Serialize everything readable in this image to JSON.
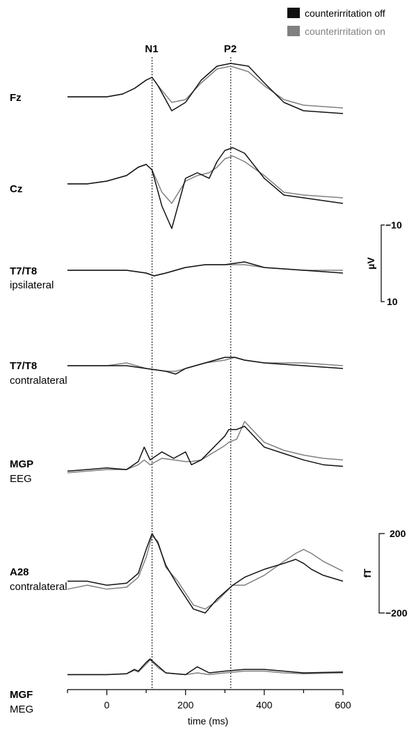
{
  "colors": {
    "off": "#111111",
    "on": "#808080",
    "axis": "#000000"
  },
  "legend": [
    {
      "label": "counterirritation off",
      "color": "#111111"
    },
    {
      "label": "counterirritation on",
      "color": "#808080"
    }
  ],
  "markers": [
    {
      "label": "N1",
      "time": 115
    },
    {
      "label": "P2",
      "time": 315
    }
  ],
  "channel_labels": [
    {
      "bold": "Fz",
      "sub": ""
    },
    {
      "bold": "Cz",
      "sub": ""
    },
    {
      "bold": "T7/T8",
      "sub": "ipsilateral"
    },
    {
      "bold": "T7/T8",
      "sub": "contralateral"
    },
    {
      "bold": "MGP",
      "sub": "EEG"
    },
    {
      "bold": "A28",
      "sub": "contralateral"
    },
    {
      "bold": "MGF",
      "sub": "MEG"
    }
  ],
  "scale_bars": [
    {
      "unit": "µV",
      "top": "−10",
      "bottom": "10"
    },
    {
      "unit": "fT",
      "top": "200",
      "bottom": "−200"
    }
  ],
  "chart_data": {
    "type": "line",
    "title": "",
    "xlabel": "time (ms)",
    "xlim": [
      -100,
      600
    ],
    "xticks": [
      0,
      200,
      400,
      600
    ],
    "series_names": [
      "counterirritation off",
      "counterirritation on"
    ],
    "panels": [
      {
        "name": "Fz",
        "unit": "µV",
        "x": [
          -100,
          -50,
          0,
          40,
          70,
          100,
          115,
          130,
          165,
          200,
          240,
          280,
          315,
          360,
          400,
          450,
          500,
          600
        ],
        "off": [
          0,
          0,
          0,
          -1,
          -3,
          -6,
          -7,
          -4,
          5,
          2,
          -6,
          -11,
          -12,
          -11,
          -5,
          2,
          5,
          6
        ],
        "on": [
          0,
          0,
          0,
          -1,
          -3,
          -6,
          -7,
          -4,
          2,
          1,
          -5,
          -10,
          -11,
          -9,
          -4,
          1,
          3,
          4
        ]
      },
      {
        "name": "Cz",
        "unit": "µV",
        "x": [
          -100,
          -50,
          0,
          50,
          80,
          100,
          115,
          140,
          165,
          200,
          230,
          260,
          280,
          300,
          320,
          350,
          400,
          450,
          500,
          600
        ],
        "off": [
          0,
          0,
          -1,
          -3,
          -6,
          -7,
          -5,
          8,
          16,
          -2,
          -4,
          -2,
          -8,
          -12,
          -13,
          -11,
          -2,
          4,
          5,
          7
        ],
        "on": [
          0,
          0,
          -1,
          -3,
          -6,
          -7,
          -5,
          3,
          7,
          -1,
          -3,
          -4,
          -6,
          -9,
          -10,
          -8,
          -3,
          3,
          4,
          5
        ]
      },
      {
        "name": "T7/T8 ipsilateral",
        "unit": "µV",
        "x": [
          -100,
          0,
          50,
          100,
          120,
          150,
          200,
          250,
          300,
          350,
          400,
          500,
          600
        ],
        "off": [
          0,
          0,
          0,
          1,
          2,
          1,
          -1,
          -2,
          -2,
          -3,
          -1,
          0,
          1
        ],
        "on": [
          0,
          0,
          0,
          1,
          2,
          1,
          -1,
          -2,
          -2,
          -2,
          -1,
          0,
          0
        ]
      },
      {
        "name": "T7/T8 contralateral",
        "unit": "µV",
        "x": [
          -100,
          0,
          50,
          100,
          150,
          175,
          200,
          250,
          300,
          325,
          350,
          400,
          500,
          600
        ],
        "off": [
          0,
          0,
          0,
          1,
          2,
          3,
          1,
          -1,
          -3,
          -3,
          -2,
          -1,
          0,
          1
        ],
        "on": [
          0,
          0,
          -1,
          1,
          2,
          2,
          1,
          -1,
          -2,
          -3,
          -2,
          -1,
          -1,
          0
        ]
      },
      {
        "name": "MGP EEG",
        "unit": "µV",
        "x": [
          -100,
          0,
          50,
          80,
          95,
          110,
          140,
          170,
          200,
          215,
          240,
          300,
          310,
          330,
          350,
          400,
          450,
          500,
          550,
          600
        ],
        "off": [
          2,
          4,
          3,
          8,
          17,
          9,
          14,
          10,
          14,
          6,
          9,
          24,
          28,
          28,
          30,
          17,
          13,
          9,
          6,
          5
        ],
        "on": [
          1,
          3,
          3,
          6,
          9,
          6,
          10,
          9,
          8,
          8,
          9,
          18,
          20,
          22,
          33,
          20,
          15,
          12,
          10,
          9
        ]
      },
      {
        "name": "A28 contralateral",
        "unit": "fT",
        "x": [
          -100,
          -50,
          0,
          50,
          80,
          100,
          115,
          130,
          150,
          180,
          220,
          250,
          280,
          320,
          350,
          400,
          450,
          480,
          500,
          520,
          550,
          600
        ],
        "off": [
          -40,
          -40,
          -60,
          -50,
          0,
          120,
          200,
          150,
          40,
          -60,
          -180,
          -200,
          -130,
          -60,
          -20,
          20,
          50,
          70,
          50,
          20,
          -10,
          -40
        ],
        "on": [
          -80,
          -60,
          -80,
          -70,
          -20,
          80,
          190,
          160,
          30,
          -40,
          -160,
          -180,
          -140,
          -60,
          -60,
          -10,
          60,
          100,
          120,
          100,
          60,
          10
        ]
      },
      {
        "name": "MGF MEG",
        "unit": "fT",
        "x": [
          -100,
          0,
          50,
          70,
          80,
          100,
          110,
          130,
          150,
          200,
          230,
          260,
          300,
          350,
          400,
          450,
          500,
          600
        ],
        "off": [
          10,
          10,
          15,
          40,
          30,
          80,
          100,
          60,
          20,
          10,
          55,
          20,
          30,
          40,
          40,
          30,
          20,
          25
        ],
        "on": [
          10,
          10,
          15,
          35,
          25,
          70,
          95,
          50,
          20,
          10,
          20,
          10,
          20,
          30,
          30,
          20,
          15,
          20
        ]
      }
    ]
  }
}
